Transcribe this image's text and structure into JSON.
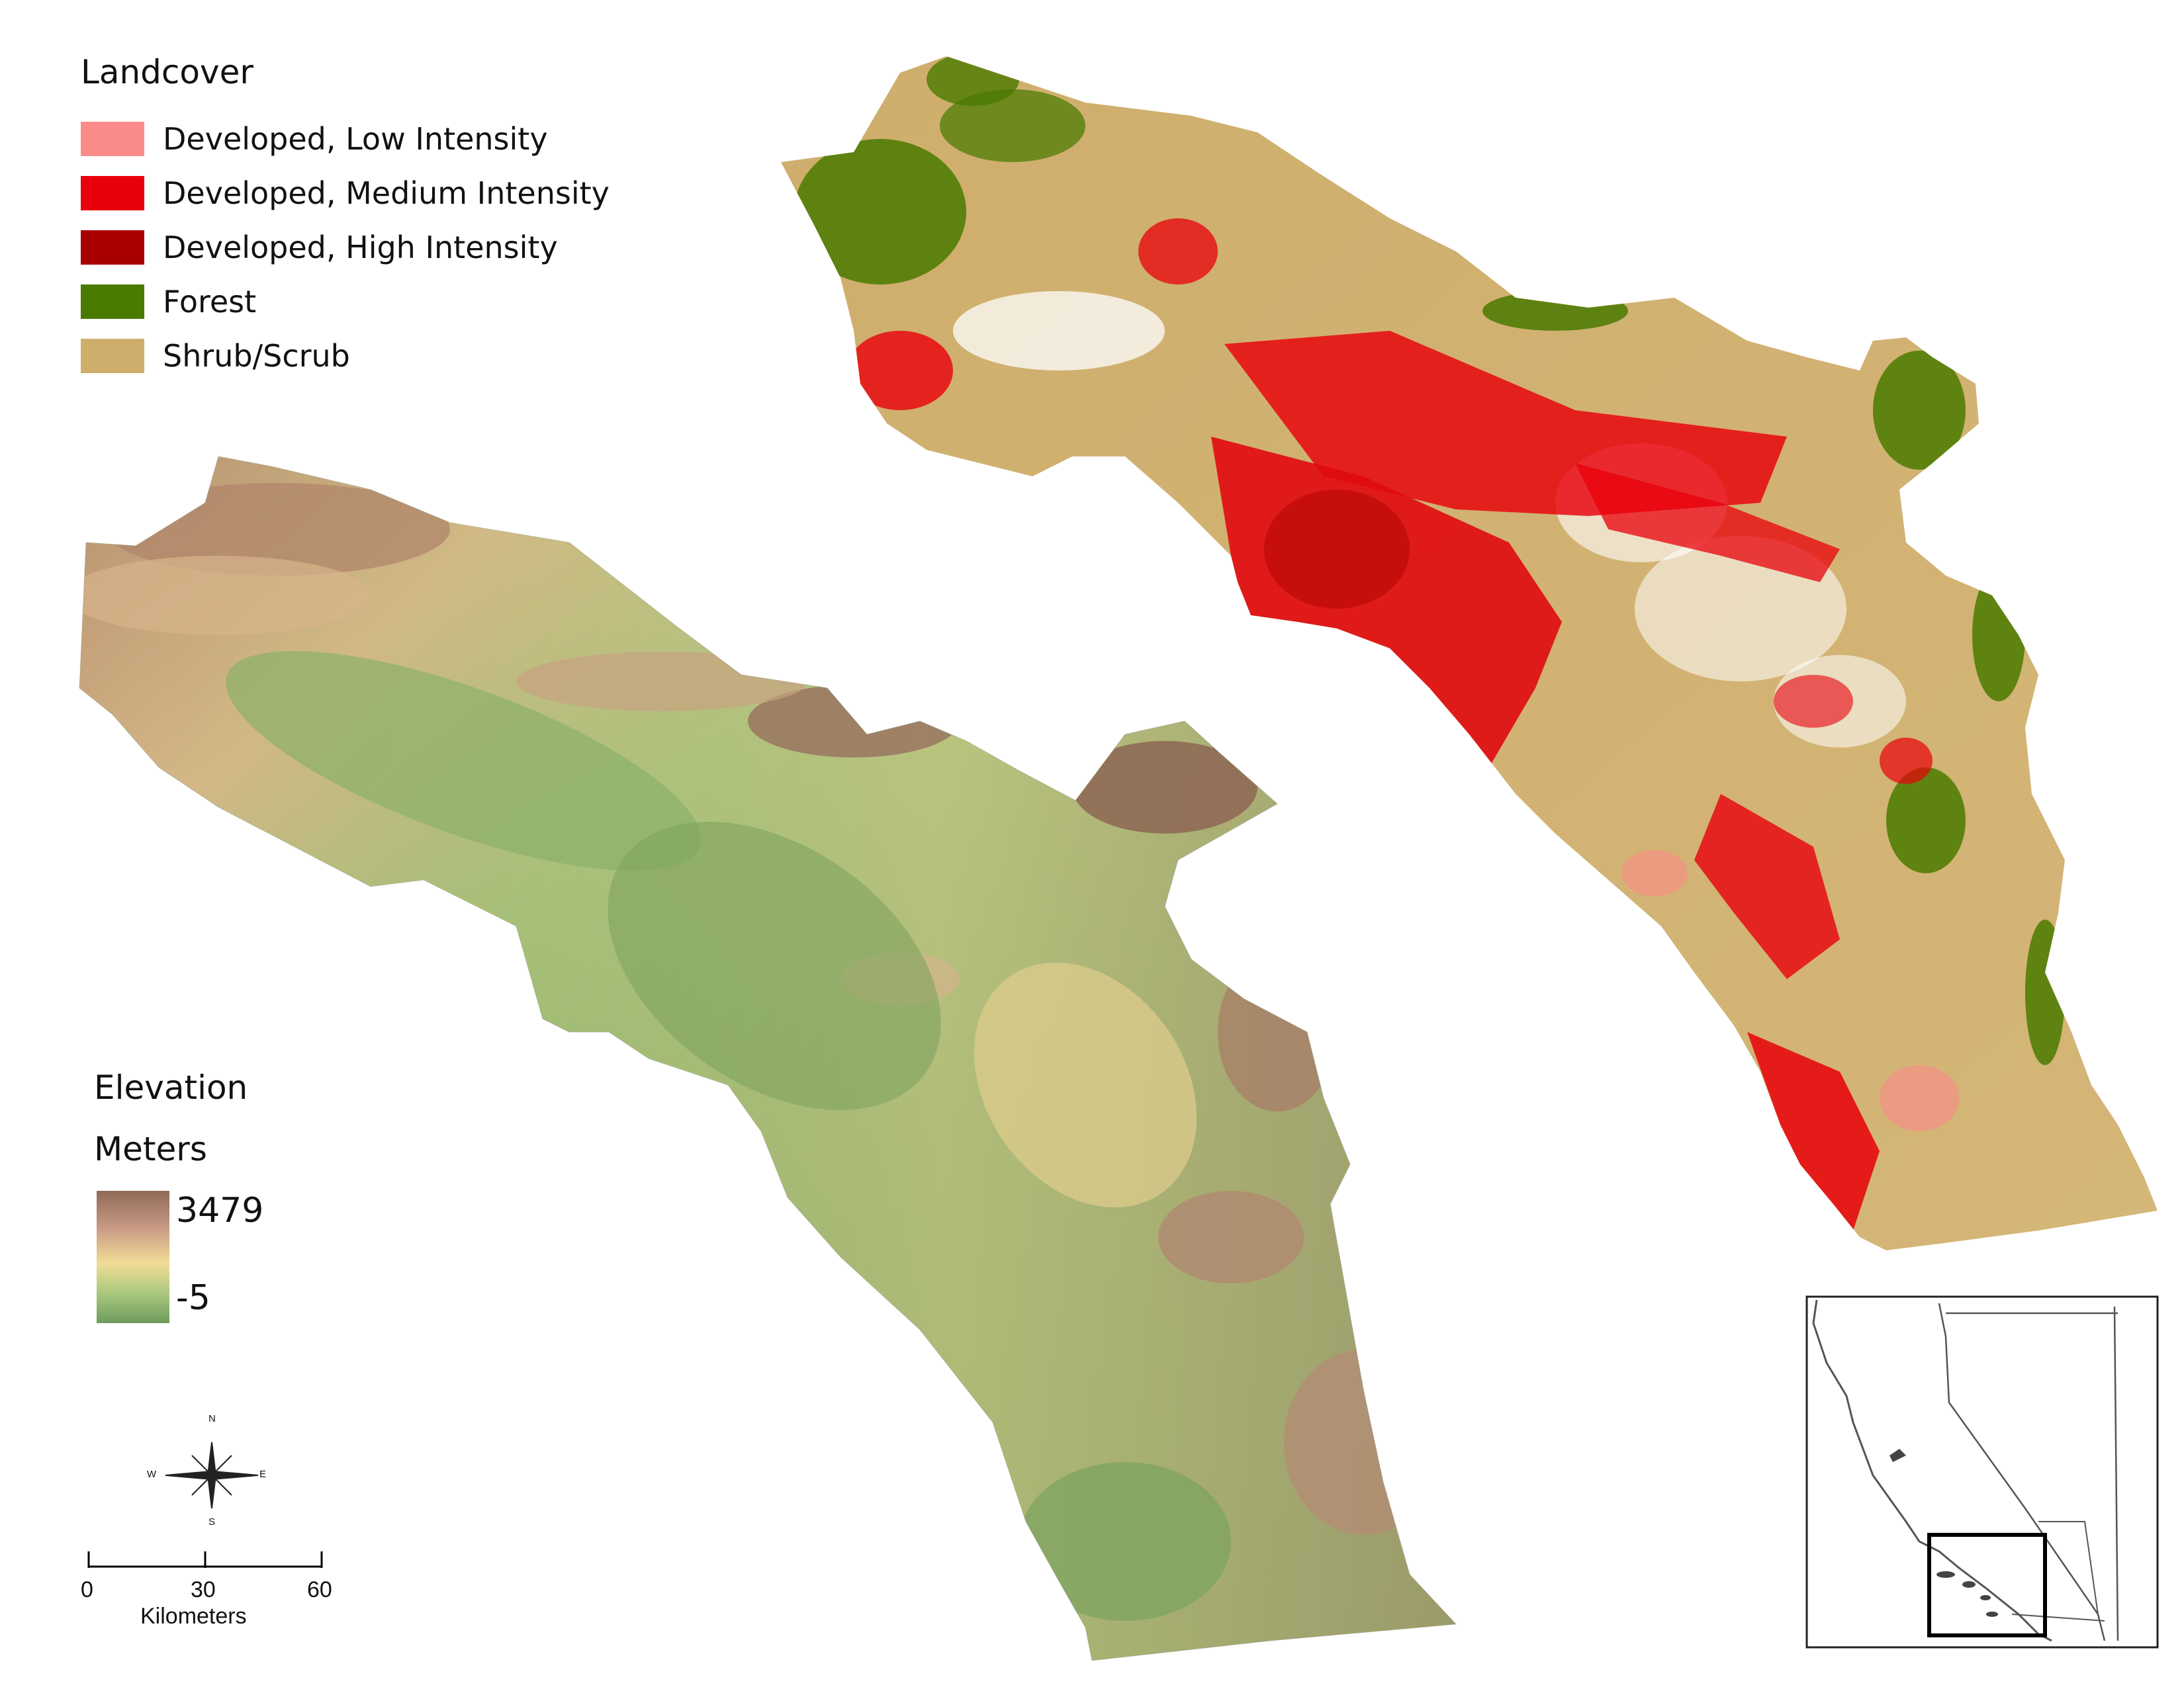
{
  "landcover_legend": {
    "title": "Landcover",
    "items": [
      {
        "label": "Developed, Low Intensity",
        "color": "#fb8b89"
      },
      {
        "label": "Developed, Medium Intensity",
        "color": "#e8000b"
      },
      {
        "label": "Developed, High Intensity",
        "color": "#a80000"
      },
      {
        "label": "Forest",
        "color": "#4a7a00"
      },
      {
        "label": "Shrub/Scrub",
        "color": "#cfae6c"
      }
    ]
  },
  "elevation_legend": {
    "title": "Elevation",
    "units": "Meters",
    "max": "3479",
    "min": "-5",
    "color_high": "#8f6a55",
    "color_low": "#6e9a5c"
  },
  "north_arrow": {
    "n": "N",
    "s": "S",
    "e": "E",
    "w": "W"
  },
  "scale_bar": {
    "ticks": [
      "0",
      "30",
      "60"
    ],
    "units": "Kilometers"
  },
  "inset_map": {
    "icon": "locator-inset-map"
  }
}
